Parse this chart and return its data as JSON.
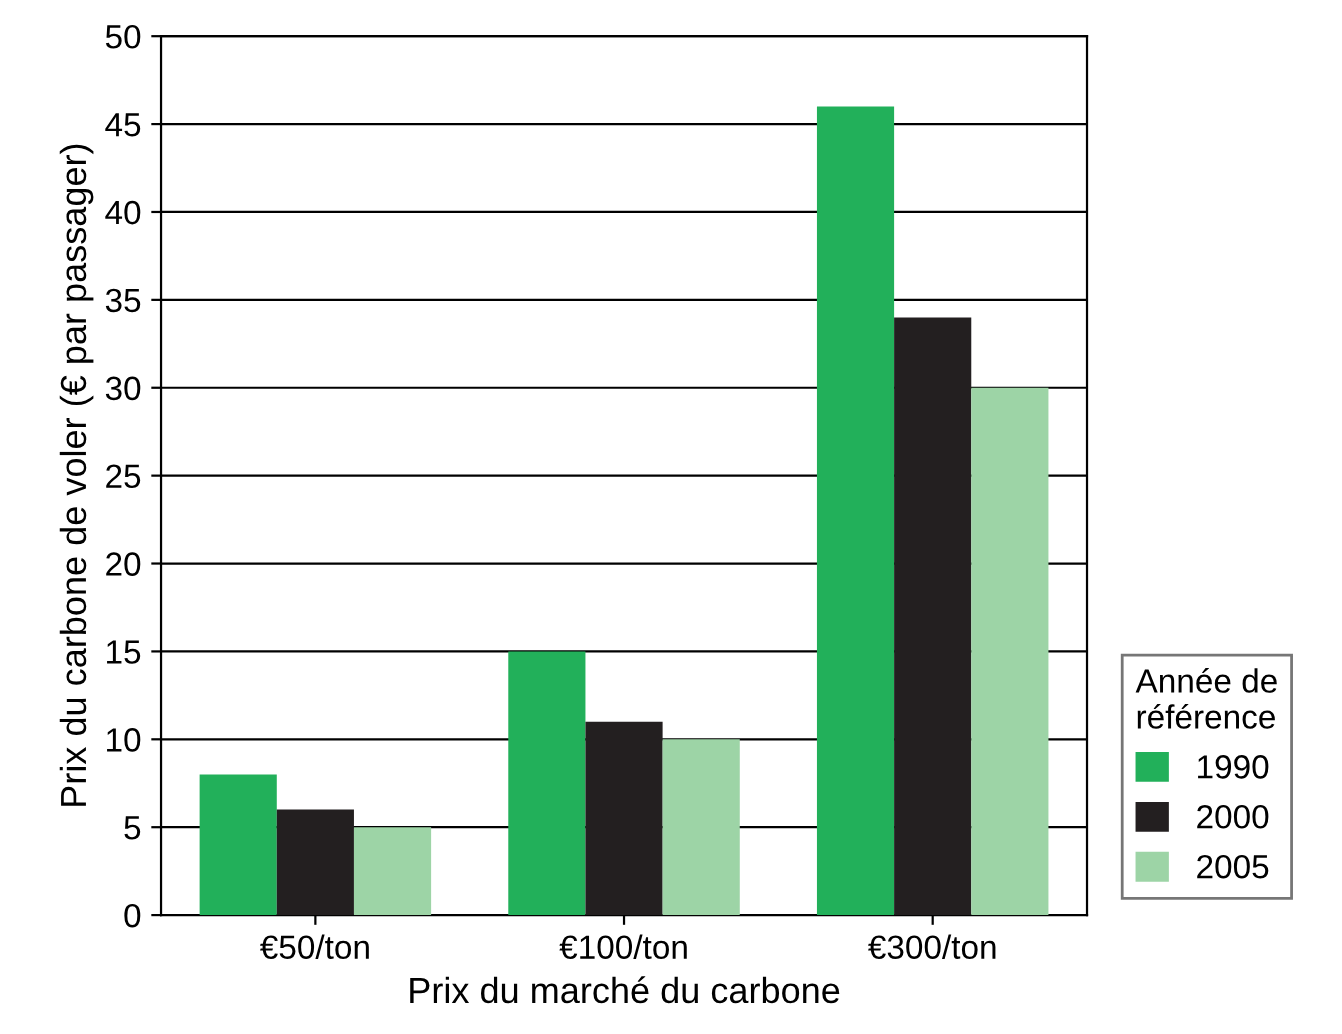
{
  "chart_data": {
    "type": "bar",
    "xlabel": "Prix du marché du carbone",
    "ylabel": "Prix du carbone de voler (€ par passager)",
    "legend_title": "Année de\nréférence",
    "categories": [
      "€50/ton",
      "€100/ton",
      "€300/ton"
    ],
    "series": [
      {
        "name": "1990",
        "color": "#22b05a",
        "values": [
          8,
          15,
          46
        ]
      },
      {
        "name": "2000",
        "color": "#231f20",
        "values": [
          6,
          11,
          34
        ]
      },
      {
        "name": "2005",
        "color": "#9dd4a6",
        "values": [
          5,
          10,
          30
        ]
      }
    ],
    "ylim": [
      0,
      50
    ],
    "yticks": [
      0,
      5,
      10,
      15,
      20,
      25,
      30,
      35,
      40,
      45,
      50
    ],
    "grid": "y",
    "legend": "bottom right"
  }
}
